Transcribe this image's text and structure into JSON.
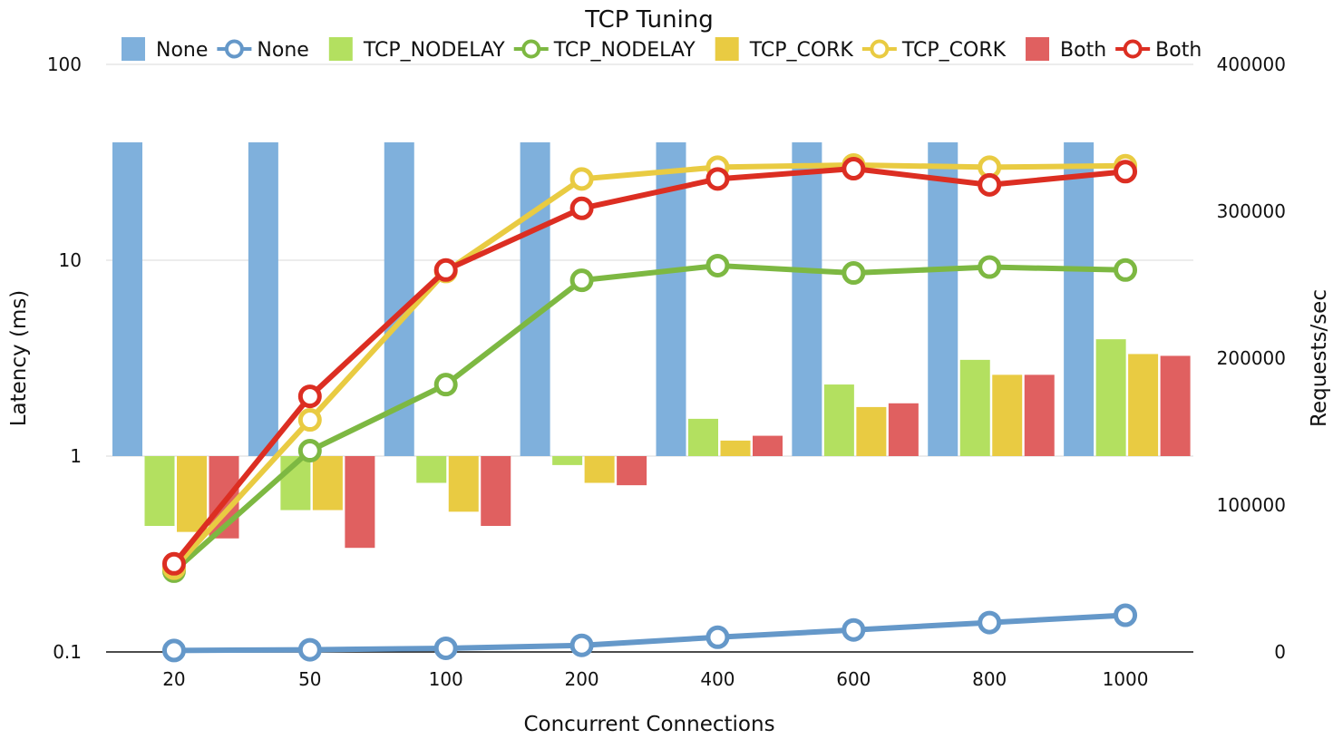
{
  "chart_data": {
    "type": "bar",
    "title": "TCP Tuning",
    "xlabel": "Concurrent Connections",
    "ylabel_left": "Latency (ms)",
    "ylabel_right": "Requests/sec",
    "y_left_scale": "log",
    "y_left_range": [
      0.1,
      100
    ],
    "y_left_ticks": [
      "100",
      "10",
      "1",
      "0.1"
    ],
    "y_right_range": [
      0,
      400000
    ],
    "y_right_ticks": [
      "400000",
      "300000",
      "200000",
      "100000",
      "0"
    ],
    "categories": [
      "20",
      "50",
      "100",
      "200",
      "400",
      "600",
      "800",
      "1000"
    ],
    "legend_position": "top",
    "grid": true,
    "bar_series": [
      {
        "name": "None",
        "color": "#7FB0DC",
        "values": [
          40,
          40,
          40,
          40,
          40,
          40,
          40,
          40
        ]
      },
      {
        "name": "TCP_NODELAY",
        "color": "#B3E060",
        "values": [
          0.44,
          0.53,
          0.73,
          0.9,
          1.55,
          2.32,
          3.1,
          3.95
        ]
      },
      {
        "name": "TCP_CORK",
        "color": "#E9CB42",
        "values": [
          0.41,
          0.53,
          0.52,
          0.73,
          1.2,
          1.78,
          2.6,
          3.32
        ]
      },
      {
        "name": "Both",
        "color": "#E06060",
        "values": [
          0.38,
          0.34,
          0.44,
          0.71,
          1.27,
          1.86,
          2.6,
          3.25
        ]
      }
    ],
    "line_series": [
      {
        "name": "None",
        "color": "#6598C9",
        "values": [
          1000,
          1500,
          2500,
          4500,
          10000,
          15000,
          20000,
          25000
        ]
      },
      {
        "name": "TCP_NODELAY",
        "color": "#7DB842",
        "values": [
          55000,
          137000,
          182000,
          253000,
          263000,
          258000,
          262000,
          260000
        ]
      },
      {
        "name": "TCP_CORK",
        "color": "#E9CB42",
        "values": [
          57000,
          158000,
          259000,
          322000,
          330000,
          331500,
          330000,
          331000
        ]
      },
      {
        "name": "Both",
        "color": "#DC2E22",
        "values": [
          60000,
          174000,
          260000,
          302000,
          322000,
          329000,
          318000,
          327000
        ]
      }
    ]
  }
}
